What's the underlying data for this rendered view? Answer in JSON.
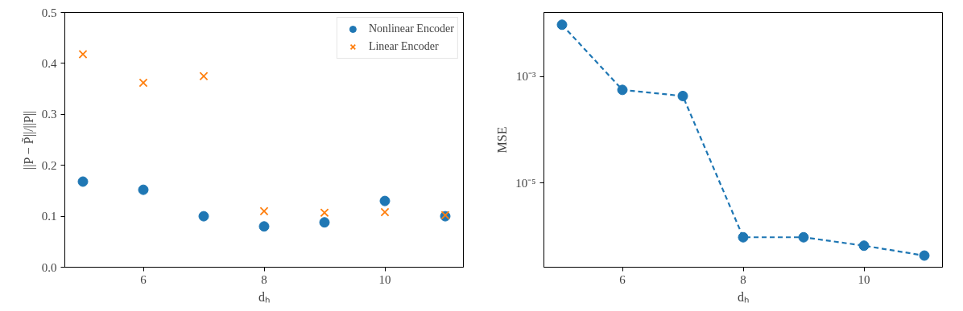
{
  "chart_data": [
    {
      "type": "scatter",
      "xlabel": "dₕ",
      "ylabel": "||P − P̃||/||P||",
      "x": [
        5,
        6,
        7,
        8,
        9,
        10,
        11
      ],
      "xlim": [
        4.7,
        11.3
      ],
      "xticks": [
        6,
        8,
        10
      ],
      "ylim": [
        0,
        0.5
      ],
      "yticks": [
        {
          "value": 0,
          "label": "0.0"
        },
        0.1,
        0.2,
        0.3,
        0.4,
        0.5
      ],
      "grid": false,
      "legend": "top right",
      "series": [
        {
          "name": "Nonlinear Encoder",
          "color": "#1f77b4",
          "marker": "circle",
          "values": [
            0.168,
            0.152,
            0.1,
            0.08,
            0.088,
            0.13,
            0.1
          ]
        },
        {
          "name": "Linear Encoder",
          "color": "#ff7f0e",
          "marker": "cross",
          "values": [
            0.418,
            0.362,
            0.375,
            0.11,
            0.107,
            0.108,
            0.102
          ]
        }
      ]
    },
    {
      "type": "line",
      "xlabel": "dₕ",
      "ylabel": "MSE",
      "x": [
        5,
        6,
        7,
        8,
        9,
        10,
        11
      ],
      "xlim": [
        4.7,
        11.3
      ],
      "xticks": [
        6,
        8,
        10
      ],
      "log": "y",
      "ylim": [
        2.6e-07,
        0.016
      ],
      "yticks": [
        {
          "value": 0.001,
          "label": "10⁻³"
        },
        {
          "value": 1e-05,
          "label": "10⁻⁵"
        }
      ],
      "grid": false,
      "marker": "circle",
      "line_style": "dashed",
      "series": [
        {
          "color": "#1f77b4",
          "values": [
            0.0094,
            0.00056,
            0.00043,
            9.5e-07,
            9.5e-07,
            6.6e-07,
            4.3e-07
          ]
        }
      ]
    }
  ]
}
